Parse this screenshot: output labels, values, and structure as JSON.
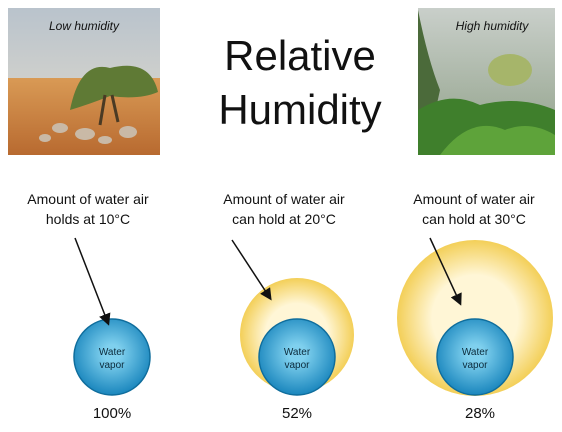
{
  "title_lines": [
    "Relative",
    "Humidity"
  ],
  "photos": [
    {
      "label": "Low humidity"
    },
    {
      "label": "High humidity"
    }
  ],
  "columns": [
    {
      "caption": [
        "Amount of water air",
        "holds at 10°C"
      ],
      "circle_label": [
        "Water",
        "vapor"
      ],
      "percent": "100%"
    },
    {
      "caption": [
        "Amount of water air",
        "can hold at 20°C"
      ],
      "circle_label": [
        "Water",
        "vapor"
      ],
      "percent": "52%"
    },
    {
      "caption": [
        "Amount of water air",
        "can hold at 30°C"
      ],
      "circle_label": [
        "Water",
        "vapor"
      ],
      "percent": "28%"
    }
  ]
}
